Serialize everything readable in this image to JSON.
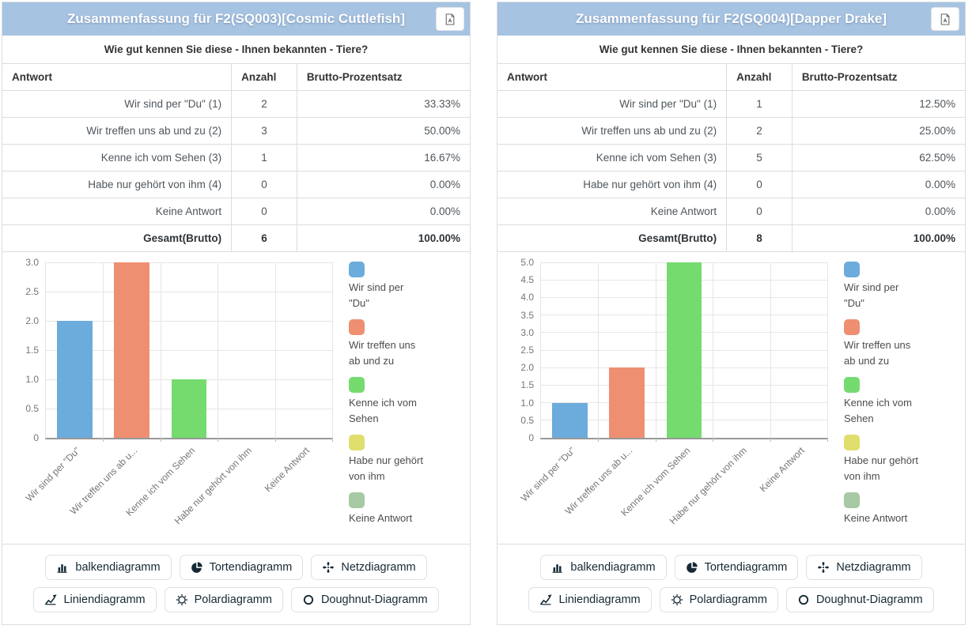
{
  "colors": {
    "header_bg": "#a6c3e2",
    "header_text": "#ffffff",
    "panel_border": "#d9dde1",
    "grid": "#e6e6e6",
    "axis": "#989898",
    "tick_text": "#767676",
    "button_text": "#152935",
    "bar_palette": [
      "#6cacdc",
      "#ef8f72",
      "#75db6f",
      "#e0de6c",
      "#a7c9a3"
    ]
  },
  "panels": [
    {
      "title": "Zusammenfassung für F2(SQ003)[Cosmic Cuttlefish]",
      "question": "Wie gut kennen Sie diese - Ihnen bekannten - Tiere?",
      "export_icon": "pdf-file-icon",
      "table": {
        "headers": [
          "Antwort",
          "Anzahl",
          "Brutto-Prozentsatz"
        ],
        "rows": [
          [
            "Wir sind per \"Du\" (1)",
            "2",
            "33.33%"
          ],
          [
            "Wir treffen uns ab und zu (2)",
            "3",
            "50.00%"
          ],
          [
            "Kenne ich vom Sehen (3)",
            "1",
            "16.67%"
          ],
          [
            "Habe nur gehört von ihm (4)",
            "0",
            "0.00%"
          ],
          [
            "Keine Antwort",
            "0",
            "0.00%"
          ]
        ],
        "footer": [
          "Gesamt(Brutto)",
          "6",
          "100.00%"
        ]
      }
    },
    {
      "title": "Zusammenfassung für F2(SQ004)[Dapper Drake]",
      "question": "Wie gut kennen Sie diese - Ihnen bekannten - Tiere?",
      "export_icon": "pdf-file-icon",
      "table": {
        "headers": [
          "Antwort",
          "Anzahl",
          "Brutto-Prozentsatz"
        ],
        "rows": [
          [
            "Wir sind per \"Du\" (1)",
            "1",
            "12.50%"
          ],
          [
            "Wir treffen uns ab und zu (2)",
            "2",
            "25.00%"
          ],
          [
            "Kenne ich vom Sehen (3)",
            "5",
            "62.50%"
          ],
          [
            "Habe nur gehört von ihm (4)",
            "0",
            "0.00%"
          ],
          [
            "Keine Antwort",
            "0",
            "0.00%"
          ]
        ],
        "footer": [
          "Gesamt(Brutto)",
          "8",
          "100.00%"
        ]
      }
    }
  ],
  "chart_data": [
    {
      "type": "bar",
      "title": "F2(SQ003)[Cosmic Cuttlefish]",
      "categories": [
        "Wir sind per \"Du\"",
        "Wir treffen uns ab und zu",
        "Kenne ich vom Sehen",
        "Habe nur gehört von ihm",
        "Keine Antwort"
      ],
      "x_tick_labels": [
        "Wir sind per \"Du\"",
        "Wir treffen uns ab u...",
        "Kenne ich vom Sehen",
        "Habe nur gehört von ihm",
        "Keine Antwort"
      ],
      "values": [
        2,
        3,
        1,
        0,
        0
      ],
      "ylim": [
        0,
        3
      ],
      "ytick_step": 0.5,
      "grid": true,
      "legend_position": "right",
      "bar_colors": [
        "#6cacdc",
        "#ef8f72",
        "#75db6f",
        "#e0de6c",
        "#a7c9a3"
      ],
      "legend_lines": [
        [
          "Wir sind per",
          "\"Du\""
        ],
        [
          "Wir treffen uns",
          "ab und zu"
        ],
        [
          "Kenne ich vom",
          "Sehen"
        ],
        [
          "Habe nur gehört",
          "von ihm"
        ],
        [
          "Keine Antwort"
        ]
      ]
    },
    {
      "type": "bar",
      "title": "F2(SQ004)[Dapper Drake]",
      "categories": [
        "Wir sind per \"Du\"",
        "Wir treffen uns ab und zu",
        "Kenne ich vom Sehen",
        "Habe nur gehört von ihm",
        "Keine Antwort"
      ],
      "x_tick_labels": [
        "Wir sind per \"Du\"",
        "Wir treffen uns ab u...",
        "Kenne ich vom Sehen",
        "Habe nur gehört von ihm",
        "Keine Antwort"
      ],
      "values": [
        1,
        2,
        5,
        0,
        0
      ],
      "ylim": [
        0,
        5
      ],
      "ytick_step": 0.5,
      "grid": true,
      "legend_position": "right",
      "bar_colors": [
        "#6cacdc",
        "#ef8f72",
        "#75db6f",
        "#e0de6c",
        "#a7c9a3"
      ],
      "legend_lines": [
        [
          "Wir sind per",
          "\"Du\""
        ],
        [
          "Wir treffen uns",
          "ab und zu"
        ],
        [
          "Kenne ich vom",
          "Sehen"
        ],
        [
          "Habe nur gehört",
          "von ihm"
        ],
        [
          "Keine Antwort"
        ]
      ]
    }
  ],
  "chart_buttons": [
    {
      "label": "balkendiagramm",
      "icon": "bar-chart-icon",
      "name": "bar-chart-button"
    },
    {
      "label": "Tortendiagramm",
      "icon": "pie-chart-icon",
      "name": "pie-chart-button"
    },
    {
      "label": "Netzdiagramm",
      "icon": "radar-arrows-icon",
      "name": "radar-chart-button"
    },
    {
      "label": "Liniendiagramm",
      "icon": "line-chart-icon",
      "name": "line-chart-button"
    },
    {
      "label": "Polardiagramm",
      "icon": "polar-sun-icon",
      "name": "polar-chart-button"
    },
    {
      "label": "Doughnut-Diagramm",
      "icon": "doughnut-ring-icon",
      "name": "doughnut-chart-button"
    }
  ]
}
